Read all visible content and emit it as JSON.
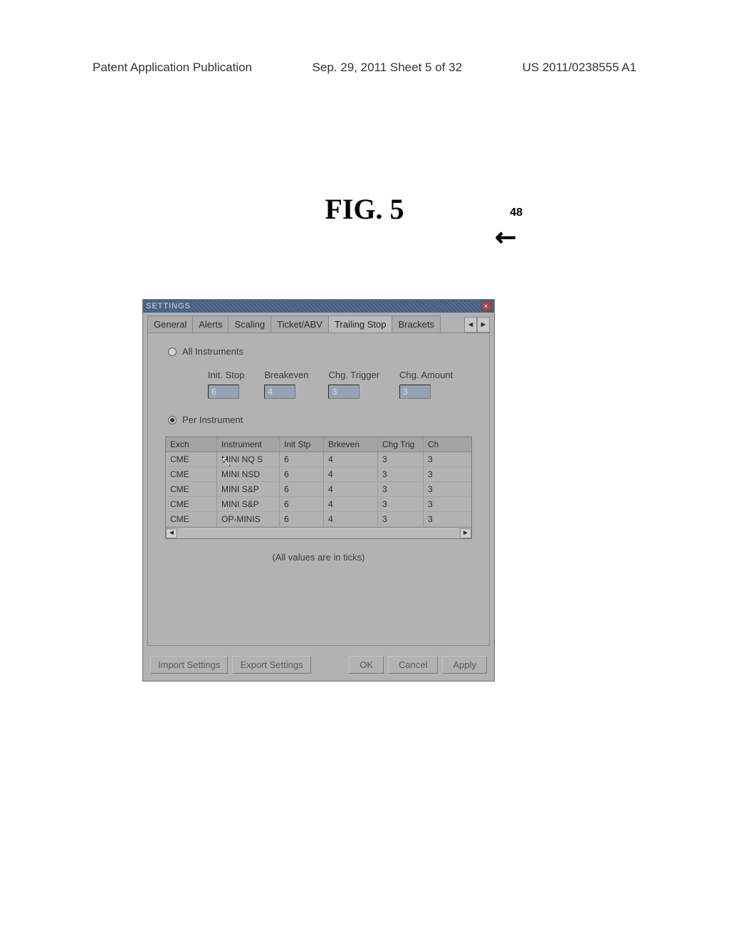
{
  "page": {
    "header_left": "Patent Application Publication",
    "header_mid": "Sep. 29, 2011  Sheet 5 of 32",
    "header_right": "US 2011/0238555 A1",
    "figure_label": "FIG. 5",
    "ref_number": "48"
  },
  "window": {
    "title": "SETTINGS",
    "tabs": [
      "General",
      "Alerts",
      "Scaling",
      "Ticket/ABV",
      "Trailing Stop",
      "Brackets"
    ],
    "active_tab_index": 4,
    "radio_all_label": "All Instruments",
    "radio_per_label": "Per Instrument",
    "radio_selected": "per",
    "globals": {
      "init_stop": {
        "label": "Init. Stop",
        "value": "6"
      },
      "breakeven": {
        "label": "Breakeven",
        "value": "4"
      },
      "chg_trigger": {
        "label": "Chg. Trigger",
        "value": "3"
      },
      "chg_amount": {
        "label": "Chg. Amount",
        "value": "3"
      }
    },
    "grid": {
      "columns": [
        "Exch",
        "Instrument",
        "Init Stp",
        "Brkeven",
        "Chg Trig",
        "Ch"
      ],
      "rows": [
        [
          "CME",
          "MINI NQ S",
          "6",
          "4",
          "3",
          "3"
        ],
        [
          "CME",
          "MINI NSD",
          "6",
          "4",
          "3",
          "3"
        ],
        [
          "CME",
          "MINI S&P",
          "6",
          "4",
          "3",
          "3"
        ],
        [
          "CME",
          "MINI S&P",
          "6",
          "4",
          "3",
          "3"
        ],
        [
          "CME",
          "OP-MINIS",
          "6",
          "4",
          "3",
          "3"
        ]
      ]
    },
    "note": "(All values are in ticks)",
    "buttons": {
      "import": "Import Settings",
      "export": "Export Settings",
      "ok": "OK",
      "cancel": "Cancel",
      "apply": "Apply"
    }
  },
  "style": {
    "window_bg": "#b8b8b8",
    "titlebar_bg": "#4a6a9a",
    "accent_input_bg": "#97a7c0",
    "text_color": "#333333",
    "grid_border": "#888888"
  }
}
